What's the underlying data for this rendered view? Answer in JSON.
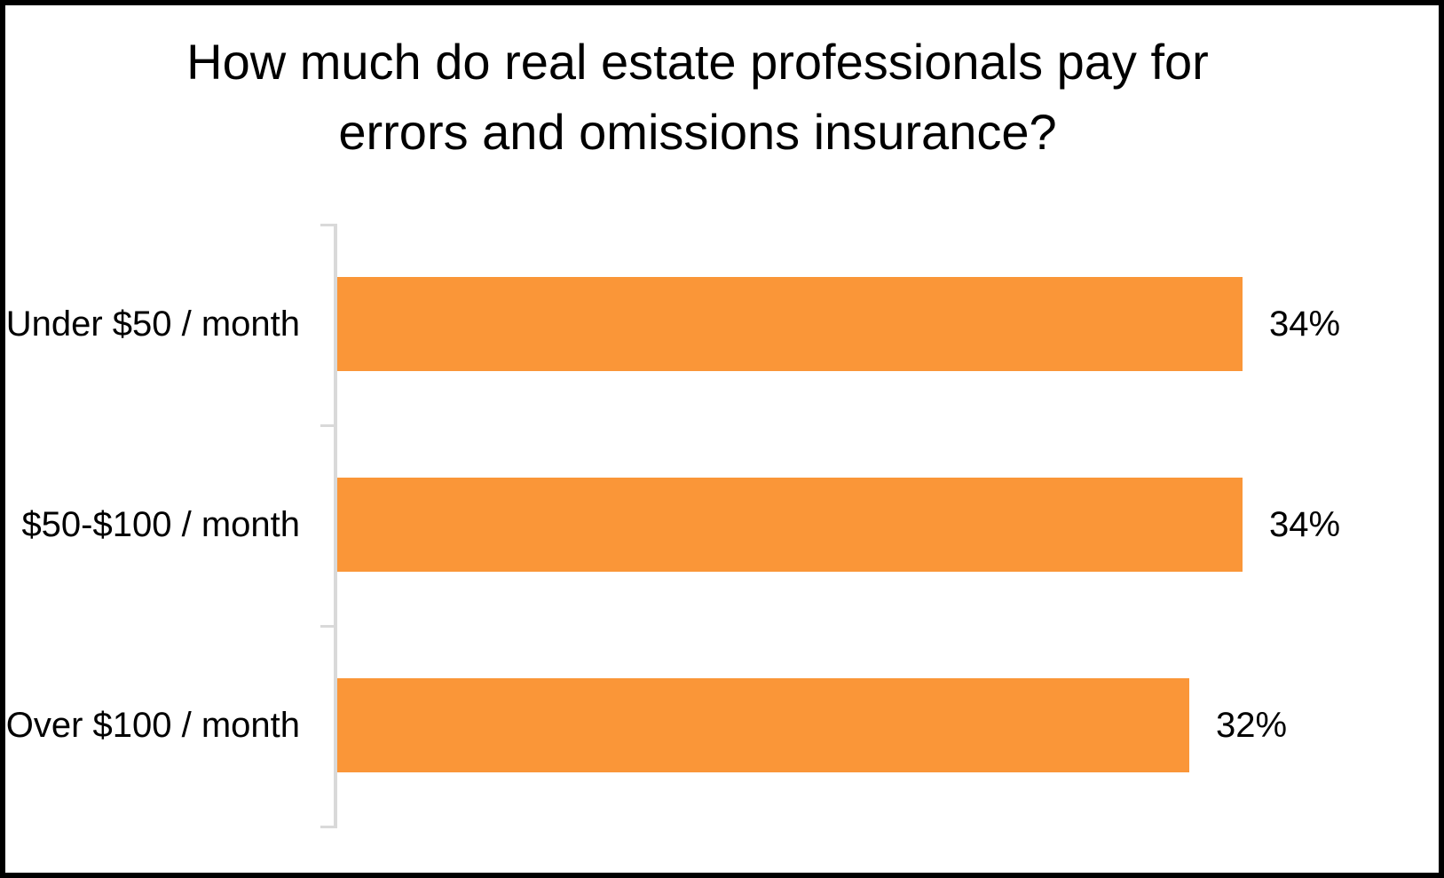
{
  "frame": {
    "border_color": "#000000",
    "background_color": "#FFFFFF"
  },
  "chart_data": {
    "type": "bar",
    "orientation": "horizontal",
    "title": "How much do real estate professionals pay for errors and omissions insurance?",
    "title_lines": [
      "How much do real estate professionals pay for",
      "errors and omissions insurance?"
    ],
    "categories": [
      "Under $50 / month",
      "$50-$100 / month",
      "Over $100 / month"
    ],
    "values": [
      34,
      34,
      32
    ],
    "value_labels": [
      "34%",
      "34%",
      "32%"
    ],
    "unit": "percent",
    "xlim": [
      0,
      41
    ],
    "grid": false,
    "legend": false,
    "value_label_position": "outside-end",
    "category_axis_side": "left",
    "bar_color": "#FA9638",
    "axis_color": "#D9D9D9",
    "text_color": "#000000"
  }
}
